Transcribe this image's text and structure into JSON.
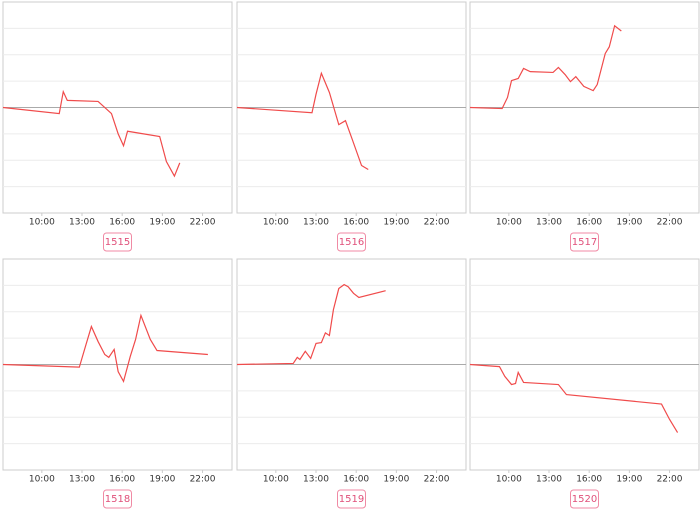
{
  "chart_data": [
    {
      "type": "line",
      "title": "1515",
      "color": "#f04b4b",
      "x": [
        7.1,
        11.3,
        11.6,
        11.9,
        14.2,
        15.2,
        15.7,
        16.1,
        16.4,
        18.8,
        19.3,
        19.9,
        20.3
      ],
      "values": [
        0,
        -0.23,
        0.6,
        0.27,
        0.23,
        -0.23,
        -1.0,
        -1.45,
        -0.9,
        -1.1,
        -2.05,
        -2.6,
        -2.1
      ],
      "xlim": [
        7.1,
        24.2
      ],
      "xticks": [
        {
          "value": 10,
          "label": "10:00"
        },
        {
          "value": 13,
          "label": "13:00"
        },
        {
          "value": 16,
          "label": "16:00"
        },
        {
          "value": 19,
          "label": "19:00"
        },
        {
          "value": 22,
          "label": "22:00"
        }
      ],
      "ylim": [
        -4,
        4
      ],
      "yticks": [
        -3,
        -2,
        -1,
        0,
        1,
        2,
        3
      ],
      "grid": true
    },
    {
      "type": "line",
      "title": "1516",
      "color": "#f04b4b",
      "x": [
        7.1,
        12.7,
        13.0,
        13.4,
        14.0,
        14.7,
        15.2,
        15.7,
        16.4,
        16.9
      ],
      "values": [
        0,
        -0.2,
        0.5,
        1.3,
        0.57,
        -0.65,
        -0.5,
        -1.2,
        -2.2,
        -2.35
      ],
      "xlim": [
        7.1,
        24.2
      ],
      "xticks": [
        {
          "value": 10,
          "label": "10:00"
        },
        {
          "value": 13,
          "label": "13:00"
        },
        {
          "value": 16,
          "label": "16:00"
        },
        {
          "value": 19,
          "label": "19:00"
        },
        {
          "value": 22,
          "label": "22:00"
        }
      ],
      "ylim": [
        -4,
        4
      ],
      "yticks": [
        -3,
        -2,
        -1,
        0,
        1,
        2,
        3
      ],
      "grid": true
    },
    {
      "type": "line",
      "title": "1517",
      "color": "#f04b4b",
      "x": [
        7.1,
        9.5,
        9.9,
        10.2,
        10.7,
        11.1,
        11.6,
        13.3,
        13.7,
        14.2,
        14.6,
        15.0,
        15.6,
        16.3,
        16.6,
        17.2,
        17.5,
        17.9,
        18.4
      ],
      "values": [
        0,
        -0.04,
        0.38,
        1.02,
        1.1,
        1.48,
        1.36,
        1.33,
        1.52,
        1.25,
        0.98,
        1.17,
        0.8,
        0.64,
        0.87,
        2.05,
        2.3,
        3.1,
        2.9
      ],
      "xlim": [
        7.1,
        24.2
      ],
      "xticks": [
        {
          "value": 10,
          "label": "10:00"
        },
        {
          "value": 13,
          "label": "13:00"
        },
        {
          "value": 16,
          "label": "16:00"
        },
        {
          "value": 19,
          "label": "19:00"
        },
        {
          "value": 22,
          "label": "22:00"
        }
      ],
      "ylim": [
        -4,
        4
      ],
      "yticks": [
        -3,
        -2,
        -1,
        0,
        1,
        2,
        3
      ],
      "grid": true
    },
    {
      "type": "line",
      "title": "1518",
      "color": "#f04b4b",
      "x": [
        7.1,
        12.8,
        13.3,
        13.7,
        14.2,
        14.7,
        15.0,
        15.4,
        15.7,
        16.1,
        16.6,
        17.0,
        17.4,
        18.1,
        18.6,
        22.4
      ],
      "values": [
        0,
        -0.1,
        0.76,
        1.44,
        0.87,
        0.38,
        0.27,
        0.57,
        -0.27,
        -0.64,
        0.3,
        0.95,
        1.86,
        0.95,
        0.53,
        0.38
      ],
      "xlim": [
        7.1,
        24.2
      ],
      "xticks": [
        {
          "value": 10,
          "label": "10:00"
        },
        {
          "value": 13,
          "label": "13:00"
        },
        {
          "value": 16,
          "label": "16:00"
        },
        {
          "value": 19,
          "label": "19:00"
        },
        {
          "value": 22,
          "label": "22:00"
        }
      ],
      "ylim": [
        -4,
        4
      ],
      "yticks": [
        -3,
        -2,
        -1,
        0,
        1,
        2,
        3
      ],
      "grid": true
    },
    {
      "type": "line",
      "title": "1519",
      "color": "#f04b4b",
      "x": [
        7.1,
        11.3,
        11.6,
        11.8,
        12.2,
        12.6,
        13.0,
        13.4,
        13.7,
        14.0,
        14.3,
        14.7,
        15.1,
        15.4,
        15.8,
        16.2,
        18.2
      ],
      "values": [
        0,
        0.04,
        0.27,
        0.19,
        0.5,
        0.23,
        0.8,
        0.83,
        1.2,
        1.1,
        2.08,
        2.88,
        3.03,
        2.95,
        2.7,
        2.54,
        2.8
      ],
      "xlim": [
        7.1,
        24.2
      ],
      "xticks": [
        {
          "value": 10,
          "label": "10:00"
        },
        {
          "value": 13,
          "label": "13:00"
        },
        {
          "value": 16,
          "label": "16:00"
        },
        {
          "value": 19,
          "label": "19:00"
        },
        {
          "value": 22,
          "label": "22:00"
        }
      ],
      "ylim": [
        -4,
        4
      ],
      "yticks": [
        -3,
        -2,
        -1,
        0,
        1,
        2,
        3
      ],
      "grid": true
    },
    {
      "type": "line",
      "title": "1520",
      "color": "#f04b4b",
      "x": [
        7.1,
        9.3,
        9.7,
        10.2,
        10.5,
        10.7,
        11.1,
        13.7,
        14.3,
        21.4,
        22.0,
        22.6
      ],
      "values": [
        0,
        -0.08,
        -0.45,
        -0.76,
        -0.72,
        -0.3,
        -0.68,
        -0.76,
        -1.14,
        -1.5,
        -2.08,
        -2.58
      ],
      "xlim": [
        7.1,
        24.2
      ],
      "xticks": [
        {
          "value": 10,
          "label": "10:00"
        },
        {
          "value": 13,
          "label": "13:00"
        },
        {
          "value": 16,
          "label": "16:00"
        },
        {
          "value": 19,
          "label": "19:00"
        },
        {
          "value": 22,
          "label": "22:00"
        }
      ],
      "ylim": [
        -4,
        4
      ],
      "yticks": [
        -3,
        -2,
        -1,
        0,
        1,
        2,
        3
      ],
      "grid": true
    }
  ]
}
